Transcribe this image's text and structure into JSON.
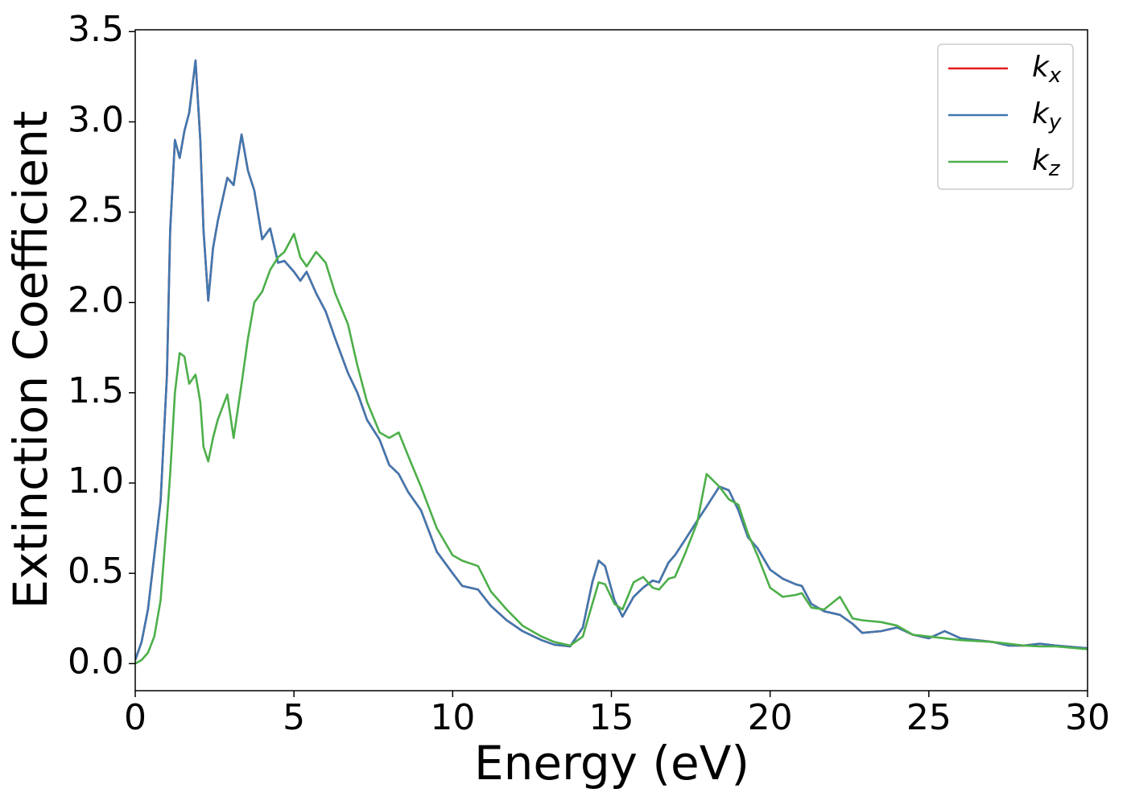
{
  "chart_data": {
    "type": "line",
    "xlabel": "Energy (eV)",
    "ylabel": "Extinction Coefficient",
    "xlim": [
      0,
      30
    ],
    "ylim": [
      -0.15,
      3.51
    ],
    "xticks": [
      0,
      5,
      10,
      15,
      20,
      25,
      30
    ],
    "yticks": [
      {
        "value": 0,
        "label": "0.0"
      },
      0.5,
      {
        "value": 1,
        "label": "1.0"
      },
      1.5,
      {
        "value": 2,
        "label": "2.0"
      },
      2.5,
      {
        "value": 3,
        "label": "3.0"
      },
      3.5
    ],
    "legend": "upper right",
    "x": [
      0,
      0.2,
      0.4,
      0.6,
      0.8,
      1.0,
      1.1,
      1.25,
      1.4,
      1.55,
      1.7,
      1.9,
      2.05,
      2.15,
      2.3,
      2.45,
      2.6,
      2.9,
      3.1,
      3.35,
      3.55,
      3.75,
      4.0,
      4.25,
      4.5,
      4.7,
      5.0,
      5.2,
      5.4,
      5.7,
      6.0,
      6.3,
      6.7,
      7.0,
      7.3,
      7.7,
      8.0,
      8.3,
      8.6,
      9.0,
      9.5,
      10.0,
      10.3,
      10.8,
      11.2,
      11.7,
      12.2,
      12.8,
      13.2,
      13.7,
      14.1,
      14.4,
      14.6,
      14.8,
      15.1,
      15.35,
      15.7,
      16.0,
      16.3,
      16.5,
      16.8,
      17.0,
      17.3,
      17.7,
      18.0,
      18.4,
      18.7,
      19.0,
      19.3,
      19.6,
      20.0,
      20.4,
      20.8,
      21.0,
      21.3,
      21.7,
      22.2,
      22.6,
      22.9,
      23.5,
      24.0,
      24.5,
      25.0,
      25.5,
      26.0,
      27.0,
      27.5,
      28.0,
      28.5,
      29.0,
      30
    ],
    "series": [
      {
        "name": "kx",
        "color": "#e41a1c",
        "values": [
          0.02,
          0.12,
          0.3,
          0.6,
          0.9,
          1.6,
          2.4,
          2.9,
          2.8,
          2.95,
          3.05,
          3.34,
          2.9,
          2.4,
          2.01,
          2.3,
          2.45,
          2.69,
          2.65,
          2.93,
          2.73,
          2.62,
          2.35,
          2.41,
          2.22,
          2.23,
          2.17,
          2.12,
          2.17,
          2.05,
          1.95,
          1.8,
          1.61,
          1.5,
          1.35,
          1.24,
          1.1,
          1.05,
          0.95,
          0.85,
          0.62,
          0.5,
          0.43,
          0.41,
          0.32,
          0.24,
          0.18,
          0.13,
          0.105,
          0.095,
          0.2,
          0.45,
          0.57,
          0.54,
          0.35,
          0.26,
          0.37,
          0.42,
          0.46,
          0.45,
          0.56,
          0.6,
          0.68,
          0.79,
          0.87,
          0.98,
          0.96,
          0.85,
          0.7,
          0.64,
          0.52,
          0.47,
          0.44,
          0.43,
          0.33,
          0.29,
          0.27,
          0.22,
          0.17,
          0.18,
          0.2,
          0.16,
          0.14,
          0.18,
          0.14,
          0.12,
          0.1,
          0.1,
          0.11,
          0.1,
          0.085
        ]
      },
      {
        "name": "ky",
        "color": "#3f78b0",
        "values": [
          0.02,
          0.12,
          0.3,
          0.6,
          0.9,
          1.6,
          2.4,
          2.9,
          2.8,
          2.95,
          3.05,
          3.34,
          2.9,
          2.4,
          2.01,
          2.3,
          2.45,
          2.69,
          2.65,
          2.93,
          2.73,
          2.62,
          2.35,
          2.41,
          2.22,
          2.23,
          2.17,
          2.12,
          2.17,
          2.05,
          1.95,
          1.8,
          1.61,
          1.5,
          1.35,
          1.24,
          1.1,
          1.05,
          0.95,
          0.85,
          0.62,
          0.5,
          0.43,
          0.41,
          0.32,
          0.24,
          0.18,
          0.13,
          0.105,
          0.095,
          0.2,
          0.45,
          0.57,
          0.54,
          0.35,
          0.26,
          0.37,
          0.42,
          0.46,
          0.45,
          0.56,
          0.6,
          0.68,
          0.79,
          0.87,
          0.98,
          0.96,
          0.85,
          0.7,
          0.64,
          0.52,
          0.47,
          0.44,
          0.43,
          0.33,
          0.29,
          0.27,
          0.22,
          0.17,
          0.18,
          0.2,
          0.16,
          0.14,
          0.18,
          0.14,
          0.12,
          0.1,
          0.1,
          0.11,
          0.1,
          0.085
        ]
      },
      {
        "name": "kz",
        "color": "#4daf4a",
        "values": [
          0.0,
          0.02,
          0.06,
          0.15,
          0.35,
          0.8,
          1.05,
          1.5,
          1.72,
          1.7,
          1.55,
          1.6,
          1.45,
          1.2,
          1.12,
          1.25,
          1.35,
          1.49,
          1.25,
          1.55,
          1.8,
          2.0,
          2.06,
          2.18,
          2.25,
          2.28,
          2.38,
          2.25,
          2.2,
          2.28,
          2.22,
          2.05,
          1.88,
          1.65,
          1.45,
          1.28,
          1.25,
          1.28,
          1.15,
          0.98,
          0.75,
          0.6,
          0.57,
          0.54,
          0.4,
          0.3,
          0.21,
          0.15,
          0.12,
          0.1,
          0.15,
          0.33,
          0.45,
          0.44,
          0.33,
          0.3,
          0.45,
          0.48,
          0.42,
          0.41,
          0.47,
          0.48,
          0.6,
          0.78,
          1.05,
          0.98,
          0.91,
          0.88,
          0.72,
          0.6,
          0.42,
          0.37,
          0.38,
          0.39,
          0.31,
          0.3,
          0.37,
          0.25,
          0.24,
          0.23,
          0.21,
          0.16,
          0.15,
          0.14,
          0.13,
          0.12,
          0.11,
          0.1,
          0.095,
          0.095,
          0.08
        ]
      }
    ]
  }
}
